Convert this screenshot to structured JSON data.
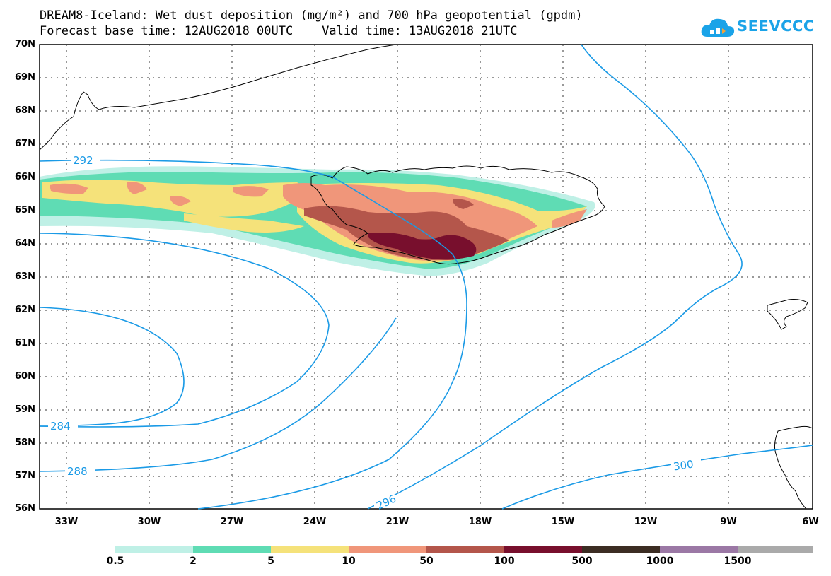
{
  "header": {
    "title_line1": "DREAM8-Iceland: Wet dust deposition (mg/m²) and 700 hPa geopotential (gpdm)",
    "title_line2": "Forecast base time: 12AUG2018 00UTC    Valid time: 13AUG2018 21UTC",
    "logo_text": "SEEVCCC",
    "logo_color": "#1aa3e8"
  },
  "map": {
    "lat_labels": [
      "70N",
      "69N",
      "68N",
      "67N",
      "66N",
      "65N",
      "64N",
      "63N",
      "62N",
      "61N",
      "60N",
      "59N",
      "58N",
      "57N",
      "56N"
    ],
    "lon_labels": [
      "33W",
      "30W",
      "27W",
      "24W",
      "21W",
      "18W",
      "15W",
      "12W",
      "9W",
      "6W"
    ],
    "contour_color": "#1a9ae6",
    "contour_labels": [
      "292",
      "284",
      "288",
      "296",
      "300"
    ]
  },
  "colorbar": {
    "labels": [
      "0.5",
      "2",
      "5",
      "10",
      "50",
      "100",
      "500",
      "1000",
      "1500"
    ],
    "colors": [
      "#bff0e6",
      "#5fdcb4",
      "#f5e27a",
      "#f0967a",
      "#b4564b",
      "#780f2d",
      "#3c2d23",
      "#9b78a5",
      "#aaaaaa"
    ]
  }
}
